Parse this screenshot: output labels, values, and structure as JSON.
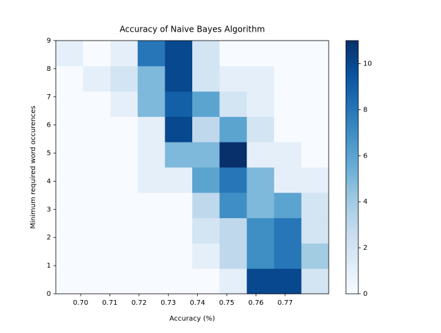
{
  "chart_data": {
    "type": "hist2d",
    "title": "Accuracy of Naive Bayes Algorithm",
    "x_label": "Accuracy (%)",
    "y_label": "Minimum required word occurences",
    "x_bins": [
      0.6915,
      0.70084,
      0.71018,
      0.71952,
      0.72886,
      0.7382,
      0.74754,
      0.75688,
      0.76622,
      0.77556,
      0.7849
    ],
    "y_bins": [
      0,
      0.9,
      1.8,
      2.7,
      3.6,
      4.5,
      5.4,
      6.3,
      7.2,
      8.1,
      9
    ],
    "z": [
      [
        0,
        0,
        0,
        0,
        0,
        0,
        1,
        10,
        10,
        2
      ],
      [
        0,
        0,
        0,
        0,
        0,
        1,
        3,
        7,
        8,
        4
      ],
      [
        0,
        0,
        0,
        0,
        0,
        2,
        3,
        7,
        8,
        2
      ],
      [
        0,
        0,
        0,
        0,
        0,
        3,
        7,
        5,
        6,
        2
      ],
      [
        0,
        0,
        0,
        1,
        1,
        6,
        8,
        5,
        1,
        1
      ],
      [
        0,
        0,
        0,
        1,
        5,
        5,
        11,
        1,
        1,
        0
      ],
      [
        0,
        0,
        0,
        1,
        10,
        3,
        6,
        2,
        0,
        0
      ],
      [
        0,
        0,
        1,
        5,
        9,
        6,
        2,
        1,
        0,
        0
      ],
      [
        0,
        1,
        2,
        5,
        10,
        2,
        1,
        1,
        0,
        0
      ],
      [
        1,
        0,
        1,
        8,
        10,
        2,
        0,
        0,
        0,
        0
      ]
    ],
    "xlim": [
      0.6915,
      0.7849
    ],
    "ylim": [
      0,
      9
    ],
    "xticks": [
      {
        "value": 0.7,
        "label": "0.70"
      },
      0.71,
      0.72,
      0.73,
      0.74,
      0.75,
      0.76,
      0.77
    ],
    "yticks": [
      0,
      1,
      2,
      3,
      4,
      5,
      6,
      7,
      8,
      9
    ],
    "colormap": "Blues",
    "clim": [
      0,
      11
    ],
    "colorbar_ticks": [
      0,
      2,
      4,
      6,
      8,
      10
    ]
  }
}
